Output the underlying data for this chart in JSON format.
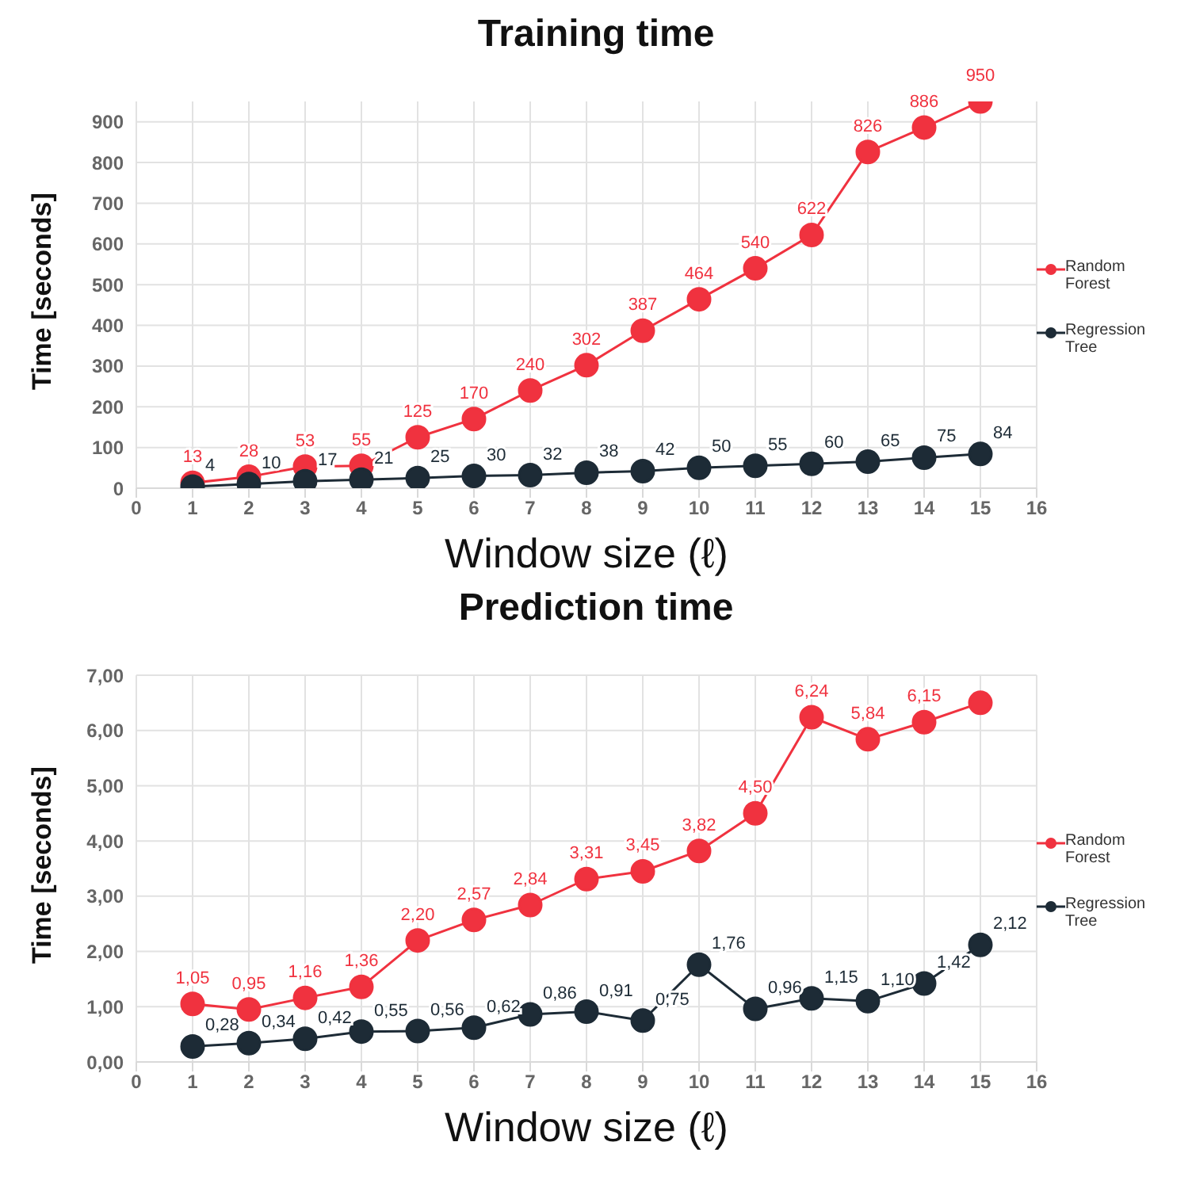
{
  "chart_data": [
    {
      "type": "line",
      "title": "Training time",
      "xlabel": "Window size (ℓ)",
      "ylabel": "Time [seconds]",
      "x": [
        1,
        2,
        3,
        4,
        5,
        6,
        7,
        8,
        9,
        10,
        11,
        12,
        13,
        14,
        15
      ],
      "xlim": [
        0,
        16
      ],
      "xticks": [
        0,
        1,
        2,
        3,
        4,
        5,
        6,
        7,
        8,
        9,
        10,
        11,
        12,
        13,
        14,
        15,
        16
      ],
      "ylim": [
        0,
        950
      ],
      "yticks": [
        0,
        100,
        200,
        300,
        400,
        500,
        600,
        700,
        800,
        900
      ],
      "grid": true,
      "legend": "right",
      "marker": "circle",
      "series": [
        {
          "name": "Random Forest",
          "color": "#f0323f",
          "values": [
            13,
            28,
            53,
            55,
            125,
            170,
            240,
            302,
            387,
            464,
            540,
            622,
            826,
            886,
            950
          ],
          "value_labels": [
            "13",
            "28",
            "53",
            "55",
            "125",
            "170",
            "240",
            "302",
            "387",
            "464",
            "540",
            "622",
            "826",
            "886",
            "950"
          ]
        },
        {
          "name": "Regression Tree",
          "color": "#1d2b36",
          "values": [
            4,
            10,
            17,
            21,
            25,
            30,
            32,
            38,
            42,
            50,
            55,
            60,
            65,
            75,
            84
          ],
          "value_labels": [
            "4",
            "10",
            "17",
            "21",
            "25",
            "30",
            "32",
            "38",
            "42",
            "50",
            "55",
            "60",
            "65",
            "75",
            "84"
          ]
        }
      ]
    },
    {
      "type": "line",
      "title": "Prediction time",
      "xlabel": "Window size (ℓ)",
      "ylabel": "Time [seconds]",
      "x": [
        1,
        2,
        3,
        4,
        5,
        6,
        7,
        8,
        9,
        10,
        11,
        12,
        13,
        14,
        15
      ],
      "xlim": [
        0,
        16
      ],
      "xticks": [
        0,
        1,
        2,
        3,
        4,
        5,
        6,
        7,
        8,
        9,
        10,
        11,
        12,
        13,
        14,
        15,
        16
      ],
      "ylim": [
        0,
        7
      ],
      "yticks": [
        {
          "value": 0,
          "label": "0,00"
        },
        {
          "value": 1,
          "label": "1,00"
        },
        {
          "value": 2,
          "label": "2,00"
        },
        {
          "value": 3,
          "label": "3,00"
        },
        {
          "value": 4,
          "label": "4,00"
        },
        {
          "value": 5,
          "label": "5,00"
        },
        {
          "value": 6,
          "label": "6,00"
        },
        {
          "value": 7,
          "label": "7,00"
        }
      ],
      "grid": true,
      "legend": "right",
      "marker": "circle",
      "series": [
        {
          "name": "Random Forest",
          "color": "#f0323f",
          "values": [
            1.05,
            0.95,
            1.16,
            1.36,
            2.2,
            2.57,
            2.84,
            3.31,
            3.45,
            3.82,
            4.5,
            6.24,
            5.84,
            6.15,
            6.5
          ],
          "value_labels": [
            "1,05",
            "0,95",
            "1,16",
            "1,36",
            "2,20",
            "2,57",
            "2,84",
            "3,31",
            "3,45",
            "3,82",
            "4,50",
            "6,24",
            "5,84",
            "6,15",
            null
          ]
        },
        {
          "name": "Regression Tree",
          "color": "#1d2b36",
          "values": [
            0.28,
            0.34,
            0.42,
            0.55,
            0.56,
            0.62,
            0.86,
            0.91,
            0.75,
            1.76,
            0.96,
            1.15,
            1.1,
            1.42,
            2.12
          ],
          "value_labels": [
            "0,28",
            "0,34",
            "0,42",
            "0,55",
            "0,56",
            "0,62",
            "0,86",
            "0,91",
            "0,75",
            "1,76",
            "0,96",
            "1,15",
            "1,10",
            "1,42",
            "2,12"
          ]
        }
      ]
    }
  ]
}
